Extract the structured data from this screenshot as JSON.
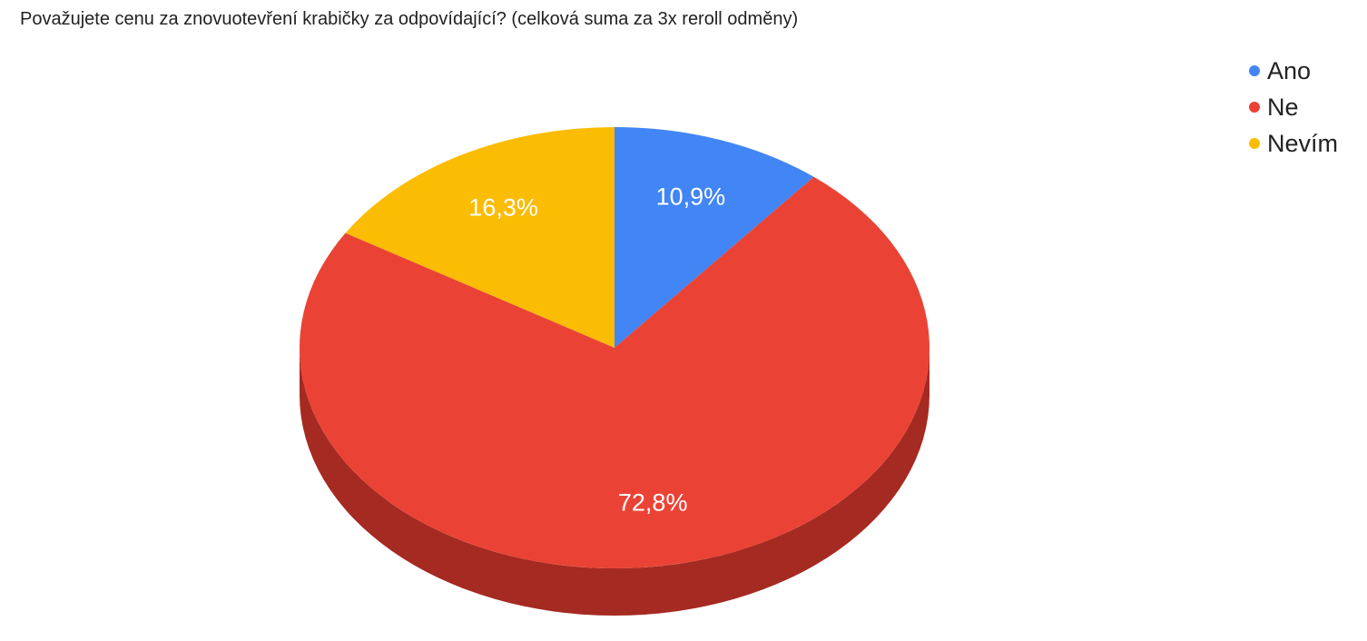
{
  "chart_data": {
    "type": "pie",
    "title": "Považujete cenu za znovuotevření krabičky za odpovídající? (celková suma za 3x reroll odměny)",
    "three_d": true,
    "legend_position": "top-right",
    "slices": [
      {
        "name": "Ano",
        "value": 10.9,
        "label": "10,9%",
        "color": "#4285f4",
        "side_color": "#2a5bb0"
      },
      {
        "name": "Ne",
        "value": 72.8,
        "label": "72,8%",
        "color": "#ea4335",
        "side_color": "#a52a22"
      },
      {
        "name": "Nevím",
        "value": 16.3,
        "label": "16,3%",
        "color": "#fbbc04",
        "side_color": "#b08300"
      }
    ]
  }
}
